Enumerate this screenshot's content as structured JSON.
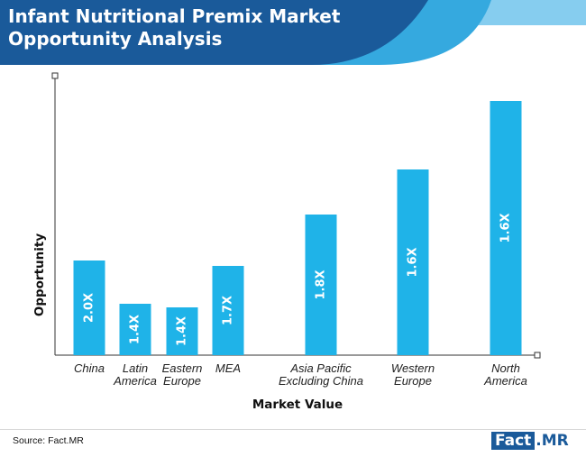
{
  "header": {
    "title_line1": "Infant Nutritional Premix Market",
    "title_line2": "Opportunity Analysis",
    "colors": {
      "banner": "#1a5a9a",
      "stripe_light": "#35a9df",
      "stripe_lighter": "#86cdef"
    }
  },
  "chart_data": {
    "type": "bar",
    "title": "Infant Nutritional Premix Market Opportunity Analysis",
    "xlabel": "Market Value",
    "ylabel": "Opportunity",
    "categories": [
      [
        "China"
      ],
      [
        "Latin",
        "America"
      ],
      [
        "Eastern",
        "Europe"
      ],
      [
        "MEA"
      ],
      [
        "Asia Pacific",
        "Excluding China"
      ],
      [
        "Western",
        "Europe"
      ],
      [
        "North",
        "America"
      ]
    ],
    "values": [
      105,
      57,
      53,
      99,
      156,
      206,
      282
    ],
    "data_labels": [
      "2.0X",
      "1.4X",
      "1.4X",
      "1.7X",
      "1.8X",
      "1.6X",
      "1.6X"
    ],
    "ylim": [
      0,
      310
    ],
    "grid": false,
    "bar_color": "#1fb3e8"
  },
  "footer": {
    "source": "Source: Fact.MR",
    "logo_fact": "Fact",
    "logo_mr": ".MR"
  }
}
